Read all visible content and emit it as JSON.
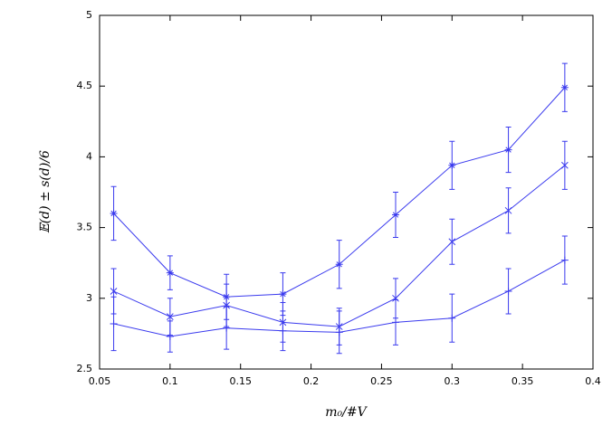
{
  "chart_data": {
    "type": "errorbar",
    "x_label": "m₀/#V",
    "y_label": "𝔼(d) ± s(d)/6",
    "x": [
      0.06,
      0.1,
      0.14,
      0.18,
      0.22,
      0.26,
      0.3,
      0.34,
      0.38
    ],
    "xlim": [
      0.05,
      0.4
    ],
    "xticks": [
      0.05,
      0.1,
      0.15,
      0.2,
      0.25,
      0.3,
      0.35,
      0.4
    ],
    "ylim": [
      2.5,
      5
    ],
    "yticks": [
      2.5,
      3,
      3.5,
      4,
      4.5,
      5
    ],
    "grid": false,
    "series": [
      {
        "color": "#3a3aee",
        "marker": "star",
        "values": [
          3.6,
          3.18,
          3.01,
          3.03,
          3.24,
          3.59,
          3.94,
          4.05,
          4.49
        ],
        "errors": [
          0.19,
          0.12,
          0.16,
          0.15,
          0.17,
          0.16,
          0.17,
          0.16,
          0.17
        ]
      },
      {
        "color": "#3a3aee",
        "marker": "x",
        "values": [
          3.05,
          2.87,
          2.95,
          2.83,
          2.8,
          3.0,
          3.4,
          3.62,
          3.94
        ],
        "errors": [
          0.16,
          0.13,
          0.15,
          0.14,
          0.13,
          0.14,
          0.16,
          0.16,
          0.17
        ]
      },
      {
        "color": "#3a3aee",
        "marker": "plus",
        "values": [
          2.82,
          2.73,
          2.79,
          2.77,
          2.76,
          2.83,
          2.86,
          3.05,
          3.27
        ],
        "errors": [
          0.19,
          0.11,
          0.15,
          0.14,
          0.15,
          0.16,
          0.17,
          0.16,
          0.17
        ]
      }
    ]
  }
}
